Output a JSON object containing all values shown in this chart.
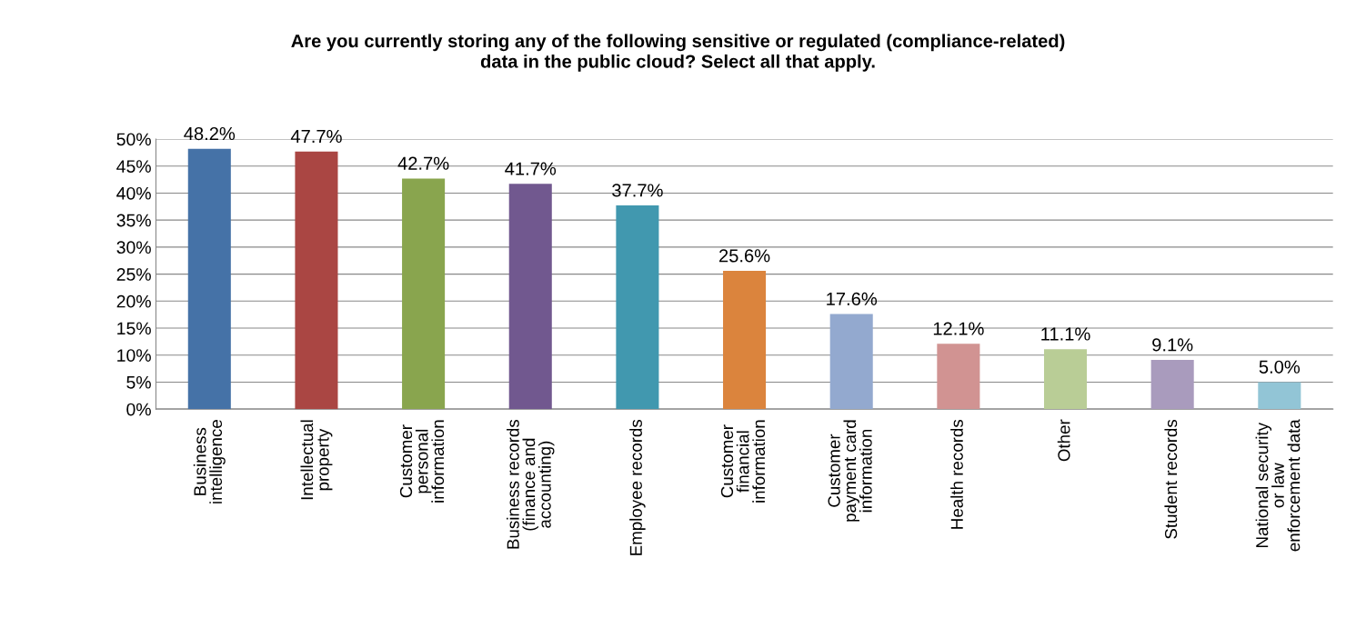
{
  "chart_data": {
    "type": "bar",
    "title": "Are you currently storing any of the following sensitive or regulated (compliance-related)\ndata in the public cloud? Select all that apply.",
    "categories": [
      "Business\nintelligence",
      "Intellectual\nproperty",
      "Customer\npersonal\ninformation",
      "Business records\n(finance and\naccounting)",
      "Employee records",
      "Customer\nfinancial\ninformation",
      "Customer\npayment card\ninformation",
      "Health records",
      "Other",
      "Student records",
      "National security\nor law\nenforcement data"
    ],
    "values": [
      48.2,
      47.7,
      42.7,
      41.7,
      37.7,
      25.6,
      17.6,
      12.1,
      11.1,
      9.1,
      5.0
    ],
    "value_labels": [
      "48.2%",
      "47.7%",
      "42.7%",
      "41.7%",
      "37.7%",
      "25.6%",
      "17.6%",
      "12.1%",
      "11.1%",
      "9.1%",
      "5.0%"
    ],
    "colors": [
      "#4572a7",
      "#aa4643",
      "#89a54e",
      "#71588f",
      "#4198af",
      "#db843d",
      "#93a9cf",
      "#d19392",
      "#b9cd96",
      "#a99bbd",
      "#92c5d6"
    ],
    "ylim": [
      0,
      50
    ],
    "yticks": [
      {
        "value": 0,
        "label": "0%"
      },
      {
        "value": 5,
        "label": "5%"
      },
      {
        "value": 10,
        "label": "10%"
      },
      {
        "value": 15,
        "label": "15%"
      },
      {
        "value": 20,
        "label": "20%"
      },
      {
        "value": 25,
        "label": "25%"
      },
      {
        "value": 30,
        "label": "30%"
      },
      {
        "value": 35,
        "label": "35%"
      },
      {
        "value": 40,
        "label": "40%"
      },
      {
        "value": 45,
        "label": "45%"
      },
      {
        "value": 50,
        "label": "50%"
      }
    ],
    "grid": "y",
    "legend": false
  }
}
